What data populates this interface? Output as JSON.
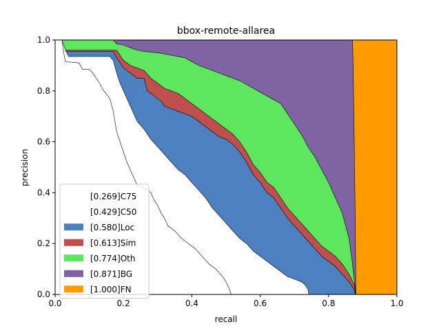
{
  "chart_data": {
    "type": "area",
    "title": "bbox-remote-allarea",
    "xlabel": "recall",
    "ylabel": "precision",
    "xlim": [
      0,
      1
    ],
    "ylim": [
      0,
      1
    ],
    "xticks": [
      "0.0",
      "0.2",
      "0.4",
      "0.6",
      "0.8",
      "1.0"
    ],
    "yticks": [
      "0.0",
      "0.2",
      "0.4",
      "0.6",
      "0.8",
      "1.0"
    ],
    "grid": false,
    "legend_position": "lower-left",
    "series": [
      {
        "name": "[0.269]C75",
        "color": "#ffffff",
        "points": [
          [
            0,
            1
          ],
          [
            0.02,
            1
          ],
          [
            0.025,
            0.95
          ],
          [
            0.03,
            0.915
          ],
          [
            0.07,
            0.91
          ],
          [
            0.08,
            0.885
          ],
          [
            0.1,
            0.885
          ],
          [
            0.11,
            0.87
          ],
          [
            0.12,
            0.85
          ],
          [
            0.13,
            0.83
          ],
          [
            0.14,
            0.805
          ],
          [
            0.16,
            0.77
          ],
          [
            0.17,
            0.72
          ],
          [
            0.175,
            0.68
          ],
          [
            0.18,
            0.64
          ],
          [
            0.19,
            0.6
          ],
          [
            0.2,
            0.56
          ],
          [
            0.21,
            0.52
          ],
          [
            0.22,
            0.49
          ],
          [
            0.23,
            0.46
          ],
          [
            0.24,
            0.43
          ],
          [
            0.26,
            0.42
          ],
          [
            0.28,
            0.4
          ],
          [
            0.29,
            0.37
          ],
          [
            0.3,
            0.35
          ],
          [
            0.31,
            0.32
          ],
          [
            0.32,
            0.3
          ],
          [
            0.33,
            0.27
          ],
          [
            0.35,
            0.25
          ],
          [
            0.37,
            0.22
          ],
          [
            0.39,
            0.2
          ],
          [
            0.41,
            0.18
          ],
          [
            0.43,
            0.15
          ],
          [
            0.45,
            0.12
          ],
          [
            0.47,
            0.1
          ],
          [
            0.49,
            0.07
          ],
          [
            0.5,
            0.05
          ],
          [
            0.51,
            0.02
          ],
          [
            0.515,
            0
          ]
        ]
      },
      {
        "name": "[0.429]C50",
        "color": "#ffffff",
        "points": [
          [
            0,
            1
          ],
          [
            0.02,
            1
          ],
          [
            0.03,
            0.96
          ],
          [
            0.04,
            0.935
          ],
          [
            0.16,
            0.935
          ],
          [
            0.17,
            0.92
          ],
          [
            0.18,
            0.87
          ],
          [
            0.19,
            0.83
          ],
          [
            0.2,
            0.8
          ],
          [
            0.21,
            0.77
          ],
          [
            0.22,
            0.74
          ],
          [
            0.23,
            0.71
          ],
          [
            0.24,
            0.68
          ],
          [
            0.26,
            0.65
          ],
          [
            0.28,
            0.61
          ],
          [
            0.3,
            0.58
          ],
          [
            0.32,
            0.55
          ],
          [
            0.34,
            0.52
          ],
          [
            0.36,
            0.49
          ],
          [
            0.38,
            0.47
          ],
          [
            0.4,
            0.44
          ],
          [
            0.42,
            0.41
          ],
          [
            0.44,
            0.38
          ],
          [
            0.46,
            0.34
          ],
          [
            0.48,
            0.31
          ],
          [
            0.5,
            0.28
          ],
          [
            0.52,
            0.25
          ],
          [
            0.54,
            0.22
          ],
          [
            0.56,
            0.2
          ],
          [
            0.58,
            0.17
          ],
          [
            0.6,
            0.15
          ],
          [
            0.62,
            0.13
          ],
          [
            0.64,
            0.11
          ],
          [
            0.66,
            0.09
          ],
          [
            0.68,
            0.07
          ],
          [
            0.7,
            0.06
          ],
          [
            0.72,
            0.05
          ],
          [
            0.73,
            0.04
          ],
          [
            0.74,
            0.02
          ],
          [
            0.742,
            0
          ]
        ]
      },
      {
        "name": "[0.580]Loc",
        "color": "#4c80be",
        "points": [
          [
            0,
            1
          ],
          [
            0.02,
            1
          ],
          [
            0.025,
            0.97
          ],
          [
            0.03,
            0.955
          ],
          [
            0.17,
            0.955
          ],
          [
            0.18,
            0.93
          ],
          [
            0.2,
            0.89
          ],
          [
            0.22,
            0.87
          ],
          [
            0.24,
            0.85
          ],
          [
            0.26,
            0.85
          ],
          [
            0.27,
            0.8
          ],
          [
            0.29,
            0.78
          ],
          [
            0.31,
            0.76
          ],
          [
            0.32,
            0.74
          ],
          [
            0.34,
            0.73
          ],
          [
            0.36,
            0.72
          ],
          [
            0.38,
            0.71
          ],
          [
            0.4,
            0.7
          ],
          [
            0.42,
            0.68
          ],
          [
            0.44,
            0.66
          ],
          [
            0.46,
            0.64
          ],
          [
            0.48,
            0.62
          ],
          [
            0.5,
            0.61
          ],
          [
            0.52,
            0.59
          ],
          [
            0.54,
            0.56
          ],
          [
            0.56,
            0.52
          ],
          [
            0.58,
            0.47
          ],
          [
            0.6,
            0.44
          ],
          [
            0.62,
            0.4
          ],
          [
            0.64,
            0.38
          ],
          [
            0.66,
            0.34
          ],
          [
            0.68,
            0.3
          ],
          [
            0.7,
            0.27
          ],
          [
            0.72,
            0.24
          ],
          [
            0.74,
            0.21
          ],
          [
            0.76,
            0.18
          ],
          [
            0.78,
            0.15
          ],
          [
            0.8,
            0.13
          ],
          [
            0.82,
            0.11
          ],
          [
            0.84,
            0.08
          ],
          [
            0.86,
            0.05
          ],
          [
            0.875,
            0.02
          ],
          [
            0.878,
            0
          ]
        ]
      },
      {
        "name": "[0.613]Sim",
        "color": "#c0504d",
        "points": [
          [
            0,
            1
          ],
          [
            0.02,
            1
          ],
          [
            0.025,
            0.975
          ],
          [
            0.03,
            0.96
          ],
          [
            0.18,
            0.96
          ],
          [
            0.2,
            0.92
          ],
          [
            0.22,
            0.9
          ],
          [
            0.24,
            0.89
          ],
          [
            0.26,
            0.88
          ],
          [
            0.28,
            0.85
          ],
          [
            0.3,
            0.83
          ],
          [
            0.32,
            0.81
          ],
          [
            0.34,
            0.8
          ],
          [
            0.36,
            0.79
          ],
          [
            0.38,
            0.77
          ],
          [
            0.4,
            0.75
          ],
          [
            0.42,
            0.73
          ],
          [
            0.44,
            0.71
          ],
          [
            0.46,
            0.69
          ],
          [
            0.48,
            0.67
          ],
          [
            0.5,
            0.65
          ],
          [
            0.52,
            0.63
          ],
          [
            0.54,
            0.6
          ],
          [
            0.56,
            0.56
          ],
          [
            0.58,
            0.51
          ],
          [
            0.6,
            0.48
          ],
          [
            0.62,
            0.44
          ],
          [
            0.64,
            0.42
          ],
          [
            0.66,
            0.38
          ],
          [
            0.68,
            0.34
          ],
          [
            0.7,
            0.31
          ],
          [
            0.72,
            0.28
          ],
          [
            0.74,
            0.25
          ],
          [
            0.76,
            0.22
          ],
          [
            0.78,
            0.19
          ],
          [
            0.8,
            0.17
          ],
          [
            0.82,
            0.15
          ],
          [
            0.84,
            0.12
          ],
          [
            0.86,
            0.08
          ],
          [
            0.875,
            0.04
          ],
          [
            0.879,
            0
          ]
        ]
      },
      {
        "name": "[0.774]Oth",
        "color": "#5ee65e",
        "points": [
          [
            0,
            1
          ],
          [
            0.02,
            1
          ],
          [
            0.17,
            1
          ],
          [
            0.18,
            0.985
          ],
          [
            0.2,
            0.98
          ],
          [
            0.22,
            0.97
          ],
          [
            0.24,
            0.96
          ],
          [
            0.26,
            0.955
          ],
          [
            0.3,
            0.95
          ],
          [
            0.34,
            0.94
          ],
          [
            0.38,
            0.93
          ],
          [
            0.42,
            0.9
          ],
          [
            0.46,
            0.88
          ],
          [
            0.5,
            0.86
          ],
          [
            0.54,
            0.84
          ],
          [
            0.58,
            0.81
          ],
          [
            0.62,
            0.78
          ],
          [
            0.66,
            0.75
          ],
          [
            0.68,
            0.71
          ],
          [
            0.7,
            0.67
          ],
          [
            0.72,
            0.63
          ],
          [
            0.74,
            0.58
          ],
          [
            0.76,
            0.54
          ],
          [
            0.78,
            0.49
          ],
          [
            0.8,
            0.44
          ],
          [
            0.82,
            0.38
          ],
          [
            0.84,
            0.32
          ],
          [
            0.86,
            0.22
          ],
          [
            0.87,
            0.12
          ],
          [
            0.88,
            0
          ]
        ]
      },
      {
        "name": "[0.871]BG",
        "color": "#7f63a2",
        "points": [
          [
            0,
            1
          ],
          [
            0.87,
            1
          ],
          [
            0.872,
            0.9
          ],
          [
            0.875,
            0.6
          ],
          [
            0.878,
            0.3
          ],
          [
            0.88,
            0
          ]
        ]
      },
      {
        "name": "[1.000]FN",
        "color": "#ff9a00",
        "points": [
          [
            0,
            1
          ],
          [
            1,
            1
          ],
          [
            1,
            0
          ]
        ]
      }
    ]
  }
}
